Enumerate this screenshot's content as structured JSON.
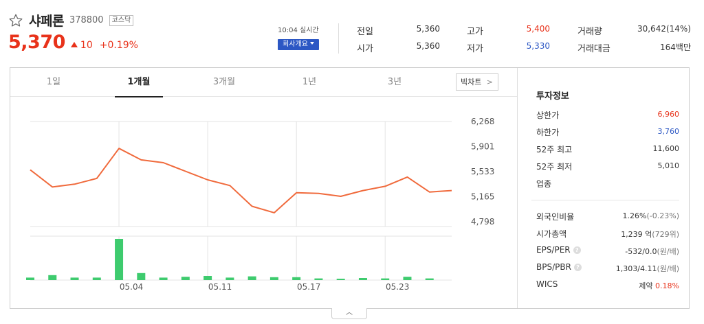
{
  "stock": {
    "name": "샤페론",
    "code": "378800",
    "market": "코스닥",
    "price": "5,370",
    "change": "10",
    "change_pct": "+0.19%"
  },
  "realtime_label": "10:04 실시간",
  "company_button": "회사개요",
  "stats": {
    "prev_close_label": "전일",
    "prev_close": "5,360",
    "open_label": "시가",
    "open": "5,360",
    "high_label": "고가",
    "high": "5,400",
    "low_label": "저가",
    "low": "5,330",
    "volume_label": "거래량",
    "volume": "30,642(14%)",
    "amount_label": "거래대금",
    "amount": "164백만"
  },
  "tabs": [
    "1일",
    "1개월",
    "3개월",
    "1년",
    "3년"
  ],
  "active_tab": "1개월",
  "bigchart_label": "빅차트",
  "chart_data": {
    "type": "line",
    "price_series": [
      5620,
      5380,
      5420,
      5500,
      5920,
      5760,
      5720,
      5600,
      5480,
      5400,
      5110,
      5020,
      5300,
      5290,
      5250,
      5330,
      5390,
      5520,
      5310,
      5330
    ],
    "volume_series": [
      6,
      12,
      6,
      6,
      100,
      17,
      6,
      8,
      10,
      6,
      9,
      7,
      7,
      4,
      3,
      5,
      4,
      8,
      4,
      0
    ],
    "y_ticks": [
      "6,268",
      "5,901",
      "5,533",
      "5,165",
      "4,798"
    ],
    "y_range": [
      4798,
      6268
    ],
    "x_labels": [
      "05.04",
      "05.11",
      "05.17",
      "05.23"
    ],
    "line_color": "#f06a3c",
    "volume_color": "#3ecb6e"
  },
  "invest_info": {
    "title": "투자정보",
    "upper_limit_label": "상한가",
    "upper_limit": "6,960",
    "lower_limit_label": "하한가",
    "lower_limit": "3,760",
    "high52_label": "52주 최고",
    "high52": "11,600",
    "low52_label": "52주 최저",
    "low52": "5,010",
    "sector_label": "업종",
    "foreign_label": "외국인비율",
    "foreign": "1.26%",
    "foreign_sub": "(-0.23%)",
    "marketcap_label": "시가총액",
    "marketcap": "1,239 억",
    "marketcap_sub": "(729위)",
    "eps_label": "EPS/PER",
    "eps": "-532/0.0",
    "eps_sub": "(원/배)",
    "bps_label": "BPS/PBR",
    "bps": "1,303/4.11",
    "bps_sub": "(원/배)",
    "wics_label": "WICS",
    "wics": "제약",
    "wics_pct": "0.18%"
  }
}
